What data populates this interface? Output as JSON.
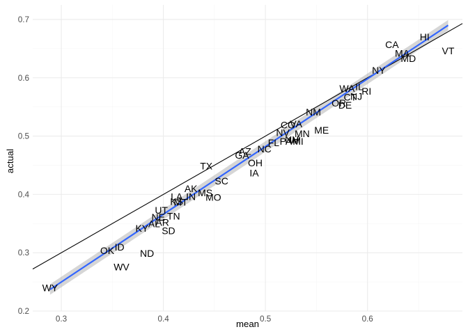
{
  "chart_data": {
    "type": "scatter",
    "title": "",
    "xlabel": "mean",
    "ylabel": "actual",
    "xlim": [
      0.272,
      0.693
    ],
    "ylim": [
      0.2,
      0.725
    ],
    "x_ticks": [
      0.3,
      0.4,
      0.5,
      0.6
    ],
    "y_ticks": [
      0.2,
      0.3,
      0.4,
      0.5,
      0.6,
      0.7
    ],
    "x_tick_labels": [
      "0.3",
      "0.4",
      "0.5",
      "0.6"
    ],
    "y_tick_labels": [
      "0.2",
      "0.3",
      "0.4",
      "0.5",
      "0.6",
      "0.7"
    ],
    "grid": true,
    "points": [
      {
        "label": "WY",
        "x": 0.289,
        "y": 0.24
      },
      {
        "label": "WV",
        "x": 0.359,
        "y": 0.276
      },
      {
        "label": "OK",
        "x": 0.345,
        "y": 0.304
      },
      {
        "label": "ID",
        "x": 0.357,
        "y": 0.31
      },
      {
        "label": "ND",
        "x": 0.384,
        "y": 0.299
      },
      {
        "label": "KY",
        "x": 0.379,
        "y": 0.342
      },
      {
        "label": "SD",
        "x": 0.405,
        "y": 0.338
      },
      {
        "label": "AL",
        "x": 0.391,
        "y": 0.35
      },
      {
        "label": "AR",
        "x": 0.399,
        "y": 0.352
      },
      {
        "label": "NE",
        "x": 0.395,
        "y": 0.361
      },
      {
        "label": "TN",
        "x": 0.41,
        "y": 0.363
      },
      {
        "label": "UT",
        "x": 0.398,
        "y": 0.373
      },
      {
        "label": "KS",
        "x": 0.413,
        "y": 0.388
      },
      {
        "label": "MT",
        "x": 0.417,
        "y": 0.387
      },
      {
        "label": "LA",
        "x": 0.413,
        "y": 0.396
      },
      {
        "label": "IN",
        "x": 0.427,
        "y": 0.396
      },
      {
        "label": "MS",
        "x": 0.441,
        "y": 0.403
      },
      {
        "label": "MO",
        "x": 0.449,
        "y": 0.395
      },
      {
        "label": "AK",
        "x": 0.427,
        "y": 0.41
      },
      {
        "label": "SC",
        "x": 0.457,
        "y": 0.423
      },
      {
        "label": "TX",
        "x": 0.442,
        "y": 0.449
      },
      {
        "label": "GA",
        "x": 0.477,
        "y": 0.467
      },
      {
        "label": "AZ",
        "x": 0.48,
        "y": 0.474
      },
      {
        "label": "NC",
        "x": 0.499,
        "y": 0.478
      },
      {
        "label": "FL",
        "x": 0.508,
        "y": 0.489
      },
      {
        "label": "OH",
        "x": 0.49,
        "y": 0.454
      },
      {
        "label": "IA",
        "x": 0.489,
        "y": 0.437
      },
      {
        "label": "NV",
        "x": 0.517,
        "y": 0.506
      },
      {
        "label": "CO",
        "x": 0.522,
        "y": 0.519
      },
      {
        "label": "VA",
        "x": 0.53,
        "y": 0.521
      },
      {
        "label": "PA",
        "x": 0.52,
        "y": 0.491
      },
      {
        "label": "NH",
        "x": 0.526,
        "y": 0.494
      },
      {
        "label": "WI",
        "x": 0.529,
        "y": 0.493
      },
      {
        "label": "MI",
        "x": 0.532,
        "y": 0.491
      },
      {
        "label": "MN",
        "x": 0.536,
        "y": 0.504
      },
      {
        "label": "ME",
        "x": 0.555,
        "y": 0.51
      },
      {
        "label": "NM",
        "x": 0.547,
        "y": 0.541
      },
      {
        "label": "OR",
        "x": 0.572,
        "y": 0.557
      },
      {
        "label": "DE",
        "x": 0.578,
        "y": 0.553
      },
      {
        "label": "CT",
        "x": 0.583,
        "y": 0.567
      },
      {
        "label": "NJ",
        "x": 0.589,
        "y": 0.568
      },
      {
        "label": "WA",
        "x": 0.58,
        "y": 0.582
      },
      {
        "label": "IL",
        "x": 0.592,
        "y": 0.585
      },
      {
        "label": "RI",
        "x": 0.599,
        "y": 0.577
      },
      {
        "label": "NY",
        "x": 0.611,
        "y": 0.613
      },
      {
        "label": "CA",
        "x": 0.624,
        "y": 0.657
      },
      {
        "label": "MA",
        "x": 0.634,
        "y": 0.642
      },
      {
        "label": "MD",
        "x": 0.64,
        "y": 0.633
      },
      {
        "label": "HI",
        "x": 0.656,
        "y": 0.67
      },
      {
        "label": "VT",
        "x": 0.679,
        "y": 0.646
      }
    ],
    "reference_line": {
      "slope": 1,
      "intercept": 0,
      "color": "#000000"
    },
    "fit_line": {
      "x": [
        0.289,
        0.679
      ],
      "y": [
        0.237,
        0.69
      ],
      "color": "#3366FF",
      "band_color": "#999999",
      "se": 0.009
    }
  }
}
